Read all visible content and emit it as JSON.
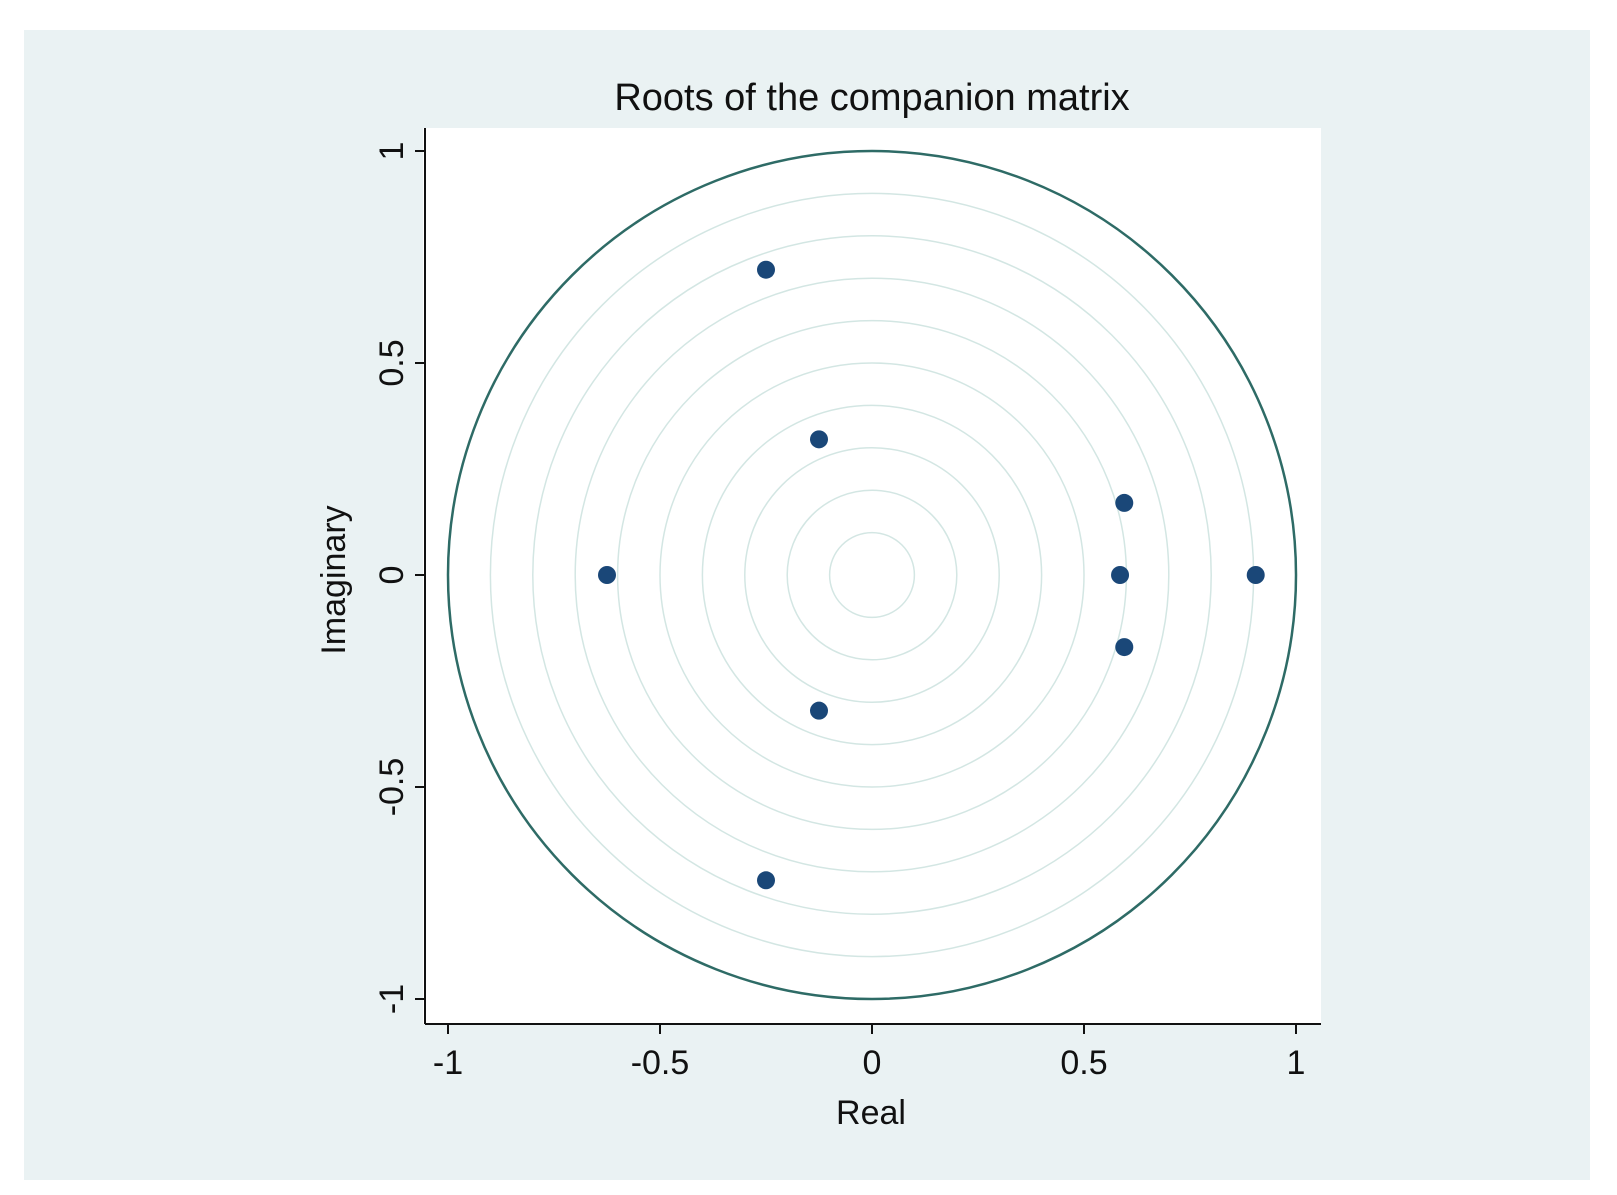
{
  "chart_data": {
    "type": "scatter",
    "title": "Roots of the companion matrix",
    "xlabel": "Real",
    "ylabel": "Imaginary",
    "xlim": [
      -1.05,
      1.05
    ],
    "ylim": [
      -1.05,
      1.05
    ],
    "x_ticks": [
      -1,
      -0.5,
      0,
      0.5,
      1
    ],
    "x_tick_labels": [
      "-1",
      "-0.5",
      "0",
      "0.5",
      "1"
    ],
    "y_ticks": [
      -1,
      -0.5,
      0,
      0.5,
      1
    ],
    "y_tick_labels": [
      "-1",
      "-0.5",
      "0",
      "0.5",
      "1"
    ],
    "unit_circle_radius": 1,
    "reference_circle_radii": [
      0.1,
      0.2,
      0.3,
      0.4,
      0.5,
      0.6,
      0.7,
      0.8,
      0.9
    ],
    "grid": false,
    "legend": "none",
    "points": [
      {
        "x": -0.25,
        "y": 0.72
      },
      {
        "x": -0.25,
        "y": -0.72
      },
      {
        "x": -0.125,
        "y": 0.32
      },
      {
        "x": -0.125,
        "y": -0.32
      },
      {
        "x": -0.625,
        "y": 0.0
      },
      {
        "x": 0.595,
        "y": 0.17
      },
      {
        "x": 0.595,
        "y": -0.17
      },
      {
        "x": 0.585,
        "y": 0.0
      },
      {
        "x": 0.905,
        "y": 0.0
      }
    ],
    "colors": {
      "outer_background": "#eaf2f3",
      "plot_background": "#ffffff",
      "unit_circle": "#2e6b66",
      "reference_circles": "#d3e6e3",
      "markers": "#1a4778",
      "axis": "#111111"
    }
  }
}
